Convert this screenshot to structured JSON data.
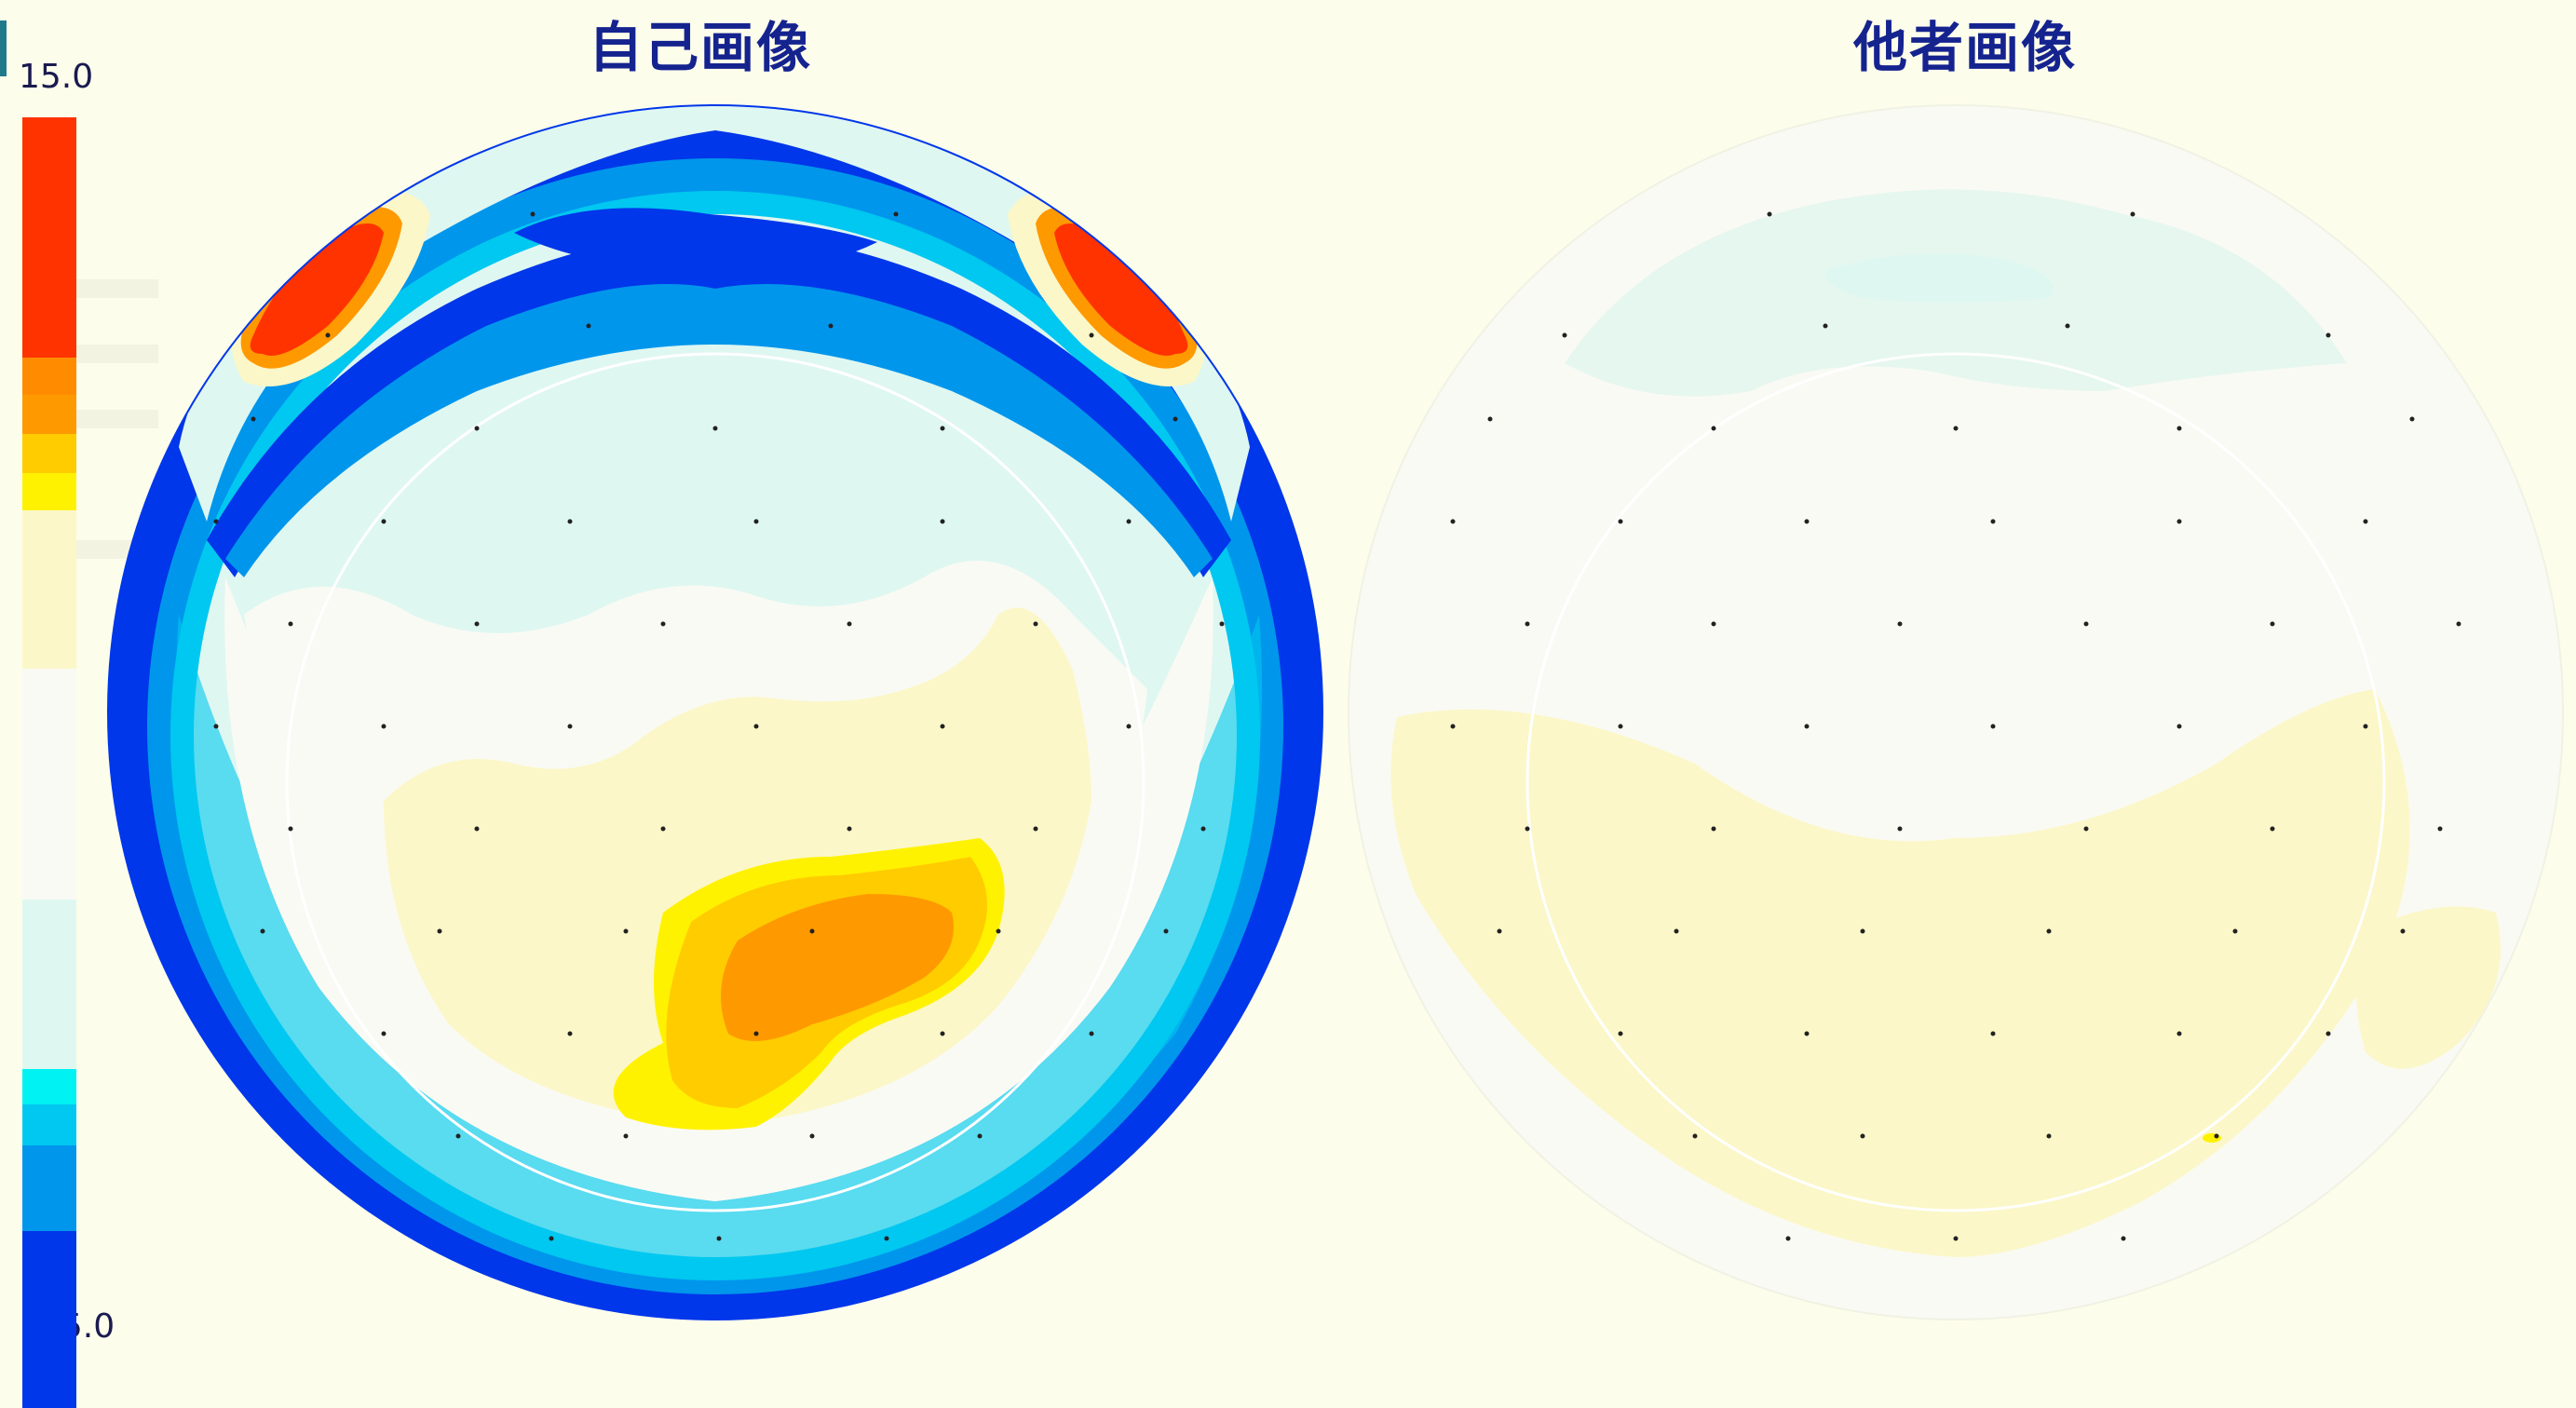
{
  "panels": {
    "left_title": "自己画像",
    "right_title": "他者画像"
  },
  "colorbar": {
    "max_label": "15.0",
    "min_label": "-15.0",
    "range": [
      -15.0,
      15.0
    ],
    "colors": [
      "#ff3300",
      "#ff9900",
      "#ffdd00",
      "#fff200",
      "#fbf7c8",
      "#fafaf4",
      "#dff7f1",
      "#00f2f2",
      "#00c8f0",
      "#0096ec",
      "#0037ea"
    ]
  },
  "colors": {
    "background": "#fdfdeb",
    "title": "#15238f",
    "accent": "#1f7a8c"
  }
}
